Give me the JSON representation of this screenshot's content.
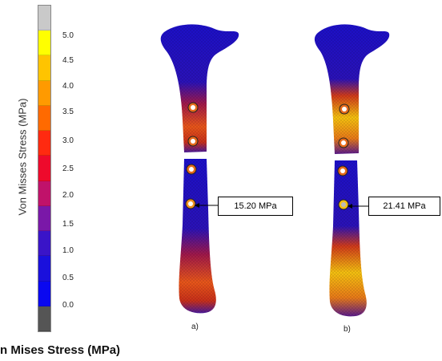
{
  "legend": {
    "title_vertical": "Von Misses Stress (MPa)",
    "title_bottom": "n Mises Stress (MPa)",
    "ticks": [
      "5.0",
      "4.5",
      "4.0",
      "3.5",
      "3.0",
      "2.5",
      "2.0",
      "1.5",
      "1.0",
      "0.5",
      "0.0"
    ],
    "colors": [
      "#c9c9c9",
      "#ffff00",
      "#ffc400",
      "#ff9a00",
      "#ff6a00",
      "#ff2a10",
      "#ee0a2c",
      "#c0126a",
      "#7a18a8",
      "#3a14c8",
      "#1a10dc",
      "#0a08f0",
      "#555555"
    ]
  },
  "panels": [
    {
      "label": "a)",
      "callout": "15.20 MPa"
    },
    {
      "label": "b)",
      "callout": "21.41 MPa"
    }
  ]
}
